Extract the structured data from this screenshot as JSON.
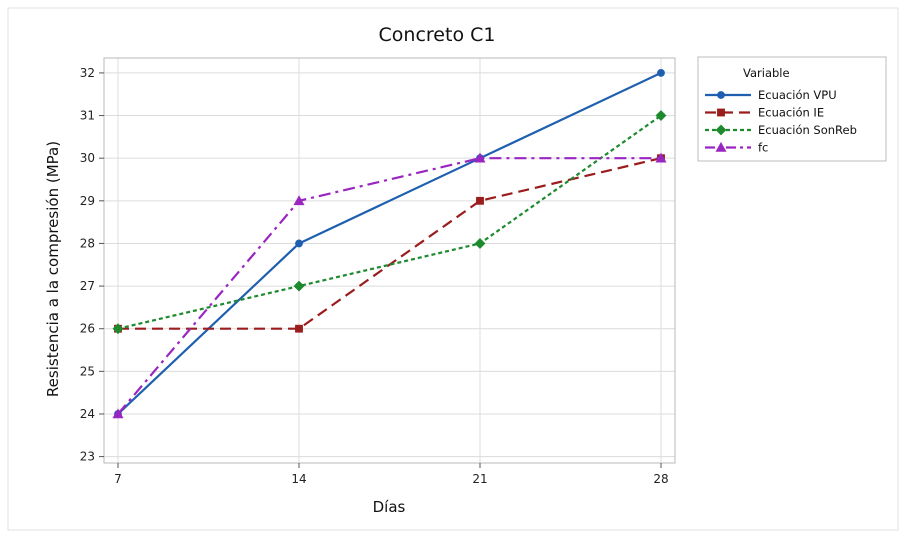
{
  "chart_data": {
    "type": "line",
    "title": "Concreto C1",
    "xlabel": "Días",
    "ylabel": "Resistencia a la compresión (MPa)",
    "x": [
      7,
      14,
      21,
      28
    ],
    "xticks": [
      "7",
      "14",
      "21",
      "28"
    ],
    "ylim": [
      22.85,
      32.35
    ],
    "yticks": [
      23,
      24,
      25,
      26,
      27,
      28,
      29,
      30,
      31,
      32
    ],
    "grid": true,
    "legend": {
      "title": "Variable",
      "placement": "right"
    },
    "series": [
      {
        "name": "Ecuación VPU",
        "values": [
          24,
          28,
          30,
          32
        ],
        "color": "#1f5fb0",
        "marker": "circle",
        "dash": "solid"
      },
      {
        "name": "Ecuación IE",
        "values": [
          26,
          26,
          29,
          30
        ],
        "color": "#9b1c1c",
        "marker": "square",
        "dash": "dash"
      },
      {
        "name": "Ecuación SonReb",
        "values": [
          26,
          27,
          28,
          31
        ],
        "color": "#1e8a2e",
        "marker": "diamond",
        "dash": "dot"
      },
      {
        "name": "fc",
        "values": [
          24,
          29,
          30,
          30
        ],
        "color": "#9a26c2",
        "marker": "triangle",
        "dash": "dashdot"
      }
    ]
  }
}
